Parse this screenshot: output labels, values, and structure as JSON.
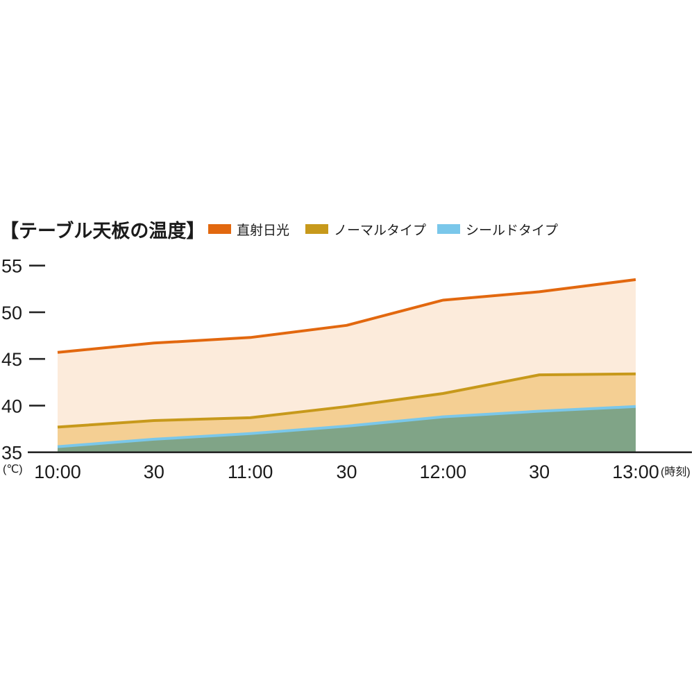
{
  "title": "【テーブル天板の温度】",
  "legend": [
    {
      "label": "直射日光",
      "color": "#e2680f"
    },
    {
      "label": "ノーマルタイプ",
      "color": "#c7991b"
    },
    {
      "label": "シールドタイプ",
      "color": "#7ac7ea"
    }
  ],
  "axis": {
    "y_unit": "(℃)",
    "x_unit": "(時刻)"
  },
  "chart_data": {
    "type": "area",
    "title": "テーブル天板の温度",
    "categories": [
      "10:00",
      "30",
      "11:00",
      "30",
      "12:00",
      "30",
      "13:00"
    ],
    "series": [
      {
        "name": "直射日光",
        "line_color": "#e2680f",
        "fill_color": "#fcebdb",
        "values": [
          45.7,
          46.7,
          47.3,
          48.6,
          51.3,
          52.2,
          53.5
        ]
      },
      {
        "name": "ノーマルタイプ",
        "line_color": "#c7991b",
        "fill_color": "#f4cf93",
        "values": [
          37.7,
          38.4,
          38.7,
          39.9,
          41.3,
          43.3,
          43.4
        ]
      },
      {
        "name": "シールドタイプ",
        "line_color": "#7ac7ea",
        "fill_color": "#80a487",
        "values": [
          35.6,
          36.4,
          37.0,
          37.8,
          38.8,
          39.4,
          39.9
        ]
      }
    ],
    "ylim": [
      35,
      55
    ],
    "yticks": [
      35,
      40,
      45,
      50,
      55
    ],
    "ylabel": "(℃)",
    "xlabel": "(時刻)",
    "grid": false,
    "legend_position": "top"
  },
  "style": {
    "axis_color": "#262626",
    "text_color": "#1b1b1b"
  }
}
